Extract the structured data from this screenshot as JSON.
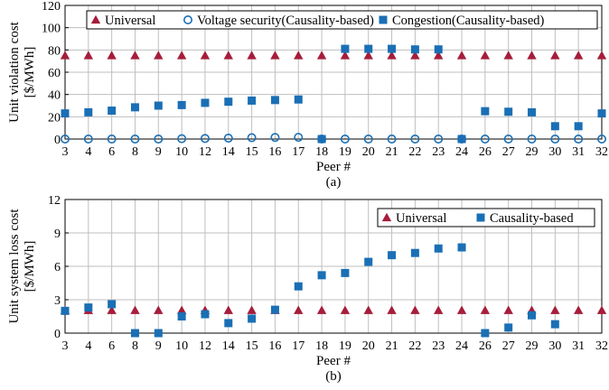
{
  "figure": {
    "colors": {
      "universal": "#a51d3b",
      "voltage": "#1a6fb5",
      "congestion": "#1a6fb5",
      "grid": "#bfbfbf"
    }
  },
  "chart_data": [
    {
      "type": "scatter",
      "categories": [
        "3",
        "4",
        "6",
        "8",
        "9",
        "10",
        "12",
        "14",
        "15",
        "16",
        "17",
        "18",
        "19",
        "20",
        "21",
        "22",
        "23",
        "24",
        "26",
        "27",
        "29",
        "30",
        "31",
        "32"
      ],
      "series": [
        {
          "name": "Universal",
          "marker": "triangle",
          "color": "#a51d3b",
          "values": [
            75,
            75,
            75,
            75,
            75,
            75,
            75,
            75,
            75,
            75,
            75,
            75,
            75,
            75,
            75,
            75,
            75,
            75,
            75,
            75,
            75,
            75,
            75,
            75
          ]
        },
        {
          "name": "Voltage security(Causality-based)",
          "marker": "circle-open",
          "color": "#1a6fb5",
          "values": [
            0,
            0,
            0,
            0,
            0,
            0.3,
            0.5,
            0.8,
            1.2,
            1.4,
            1.5,
            0,
            0,
            0,
            0,
            0,
            0,
            0,
            0,
            0,
            0,
            0,
            0,
            0
          ]
        },
        {
          "name": "Congestion(Causality-based)",
          "marker": "square",
          "color": "#1a6fb5",
          "values": [
            23,
            24,
            25.5,
            28.5,
            30,
            30.5,
            32.5,
            33.5,
            34.5,
            35,
            35.5,
            0,
            81,
            81,
            81,
            80.5,
            80.5,
            0,
            25,
            24.5,
            24,
            11.5,
            11.5,
            23
          ]
        }
      ],
      "xlabel": "Peer #",
      "ylabel": [
        "Unit violation cost",
        "[$/MWh]"
      ],
      "yticks": [
        "0",
        "20",
        "40",
        "60",
        "80",
        "100",
        "120"
      ],
      "ylim": [
        0,
        120
      ],
      "grid": true,
      "legend_position": "top",
      "caption": "(a)"
    },
    {
      "type": "scatter",
      "categories": [
        "3",
        "4",
        "6",
        "8",
        "9",
        "10",
        "12",
        "14",
        "15",
        "16",
        "17",
        "18",
        "19",
        "20",
        "21",
        "22",
        "23",
        "24",
        "26",
        "27",
        "29",
        "30",
        "31",
        "32"
      ],
      "series": [
        {
          "name": "Universal",
          "marker": "triangle",
          "color": "#a51d3b",
          "values": [
            2.05,
            2.05,
            2.05,
            2.05,
            2.05,
            2.05,
            2.05,
            2.05,
            2.05,
            2.05,
            2.05,
            2.05,
            2.05,
            2.05,
            2.05,
            2.05,
            2.05,
            2.05,
            2.05,
            2.05,
            2.05,
            2.05,
            2.05,
            2.05
          ]
        },
        {
          "name": "Causality-based",
          "marker": "square",
          "color": "#1a6fb5",
          "values": [
            2.0,
            2.3,
            2.6,
            0,
            0,
            1.5,
            1.7,
            0.9,
            1.3,
            2.1,
            4.2,
            5.2,
            5.4,
            6.4,
            7.0,
            7.2,
            7.6,
            7.7,
            0,
            0.5,
            1.6,
            0.8,
            null,
            null
          ]
        }
      ],
      "xlabel": "Peer #",
      "ylabel": [
        "Unit system loss cost",
        "[$/MWh]"
      ],
      "yticks": [
        "0",
        "3",
        "6",
        "9",
        "12"
      ],
      "ylim": [
        0,
        12
      ],
      "grid": true,
      "legend_position": "top-right",
      "caption": "(b)"
    }
  ]
}
